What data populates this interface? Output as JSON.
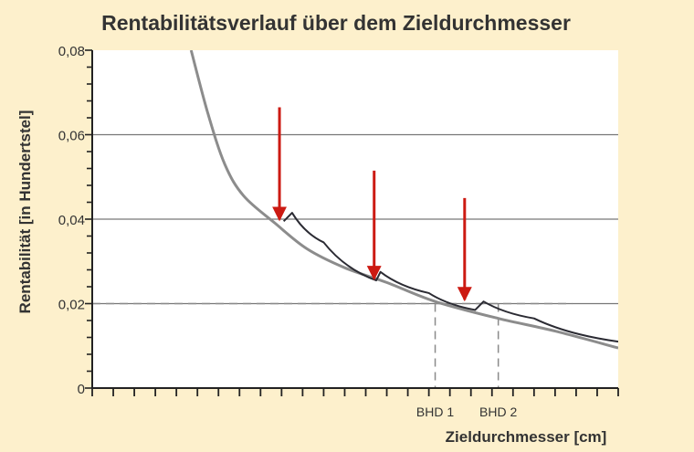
{
  "chart_data": {
    "type": "line",
    "title": "Rentabilitätsverlauf über dem Zieldurchmesser",
    "xlabel": "Zieldurchmesser [cm]",
    "ylabel": "Rentabilität [in Hundertstel]",
    "ylim": [
      0,
      0.08
    ],
    "yticks": [
      "0",
      "0,02",
      "0,04",
      "0,06",
      "0,08"
    ],
    "x_tick_count": 26,
    "x_markers": [
      {
        "label": "BHD 1",
        "x": 16.3
      },
      {
        "label": "BHD 2",
        "x": 19.3
      }
    ],
    "reference_line_y": 0.02,
    "grid": "horizontal",
    "series": [
      {
        "color": "#8c8c8c",
        "x": [
          4.7,
          5.5,
          6.3,
          7.2,
          8.7,
          10.2,
          12.0,
          14.0,
          16.3,
          19.3,
          22.0,
          25.0
        ],
        "values": [
          0.08,
          0.065,
          0.053,
          0.0455,
          0.039,
          0.033,
          0.0285,
          0.025,
          0.0205,
          0.0165,
          0.0135,
          0.0095
        ]
      },
      {
        "color": "#2b2b33",
        "x": [
          9.1,
          9.5,
          11.0,
          13.5,
          13.7,
          16.0,
          18.2,
          18.6,
          21.0,
          25.0
        ],
        "values": [
          0.0395,
          0.0415,
          0.0345,
          0.0255,
          0.0275,
          0.0225,
          0.0185,
          0.0205,
          0.0165,
          0.011
        ]
      }
    ],
    "arrows": [
      {
        "x": 8.9,
        "y_from": 0.0665,
        "y_to": 0.0395
      },
      {
        "x": 13.4,
        "y_from": 0.0515,
        "y_to": 0.0255
      },
      {
        "x": 17.7,
        "y_from": 0.045,
        "y_to": 0.0205
      }
    ],
    "colors": {
      "background": "#fdf0cc",
      "plot_area": "#ffffff",
      "arrow": "#cc1a12",
      "grid": "#777777",
      "dashed": "#8a8a8a",
      "text": "#333333"
    }
  }
}
